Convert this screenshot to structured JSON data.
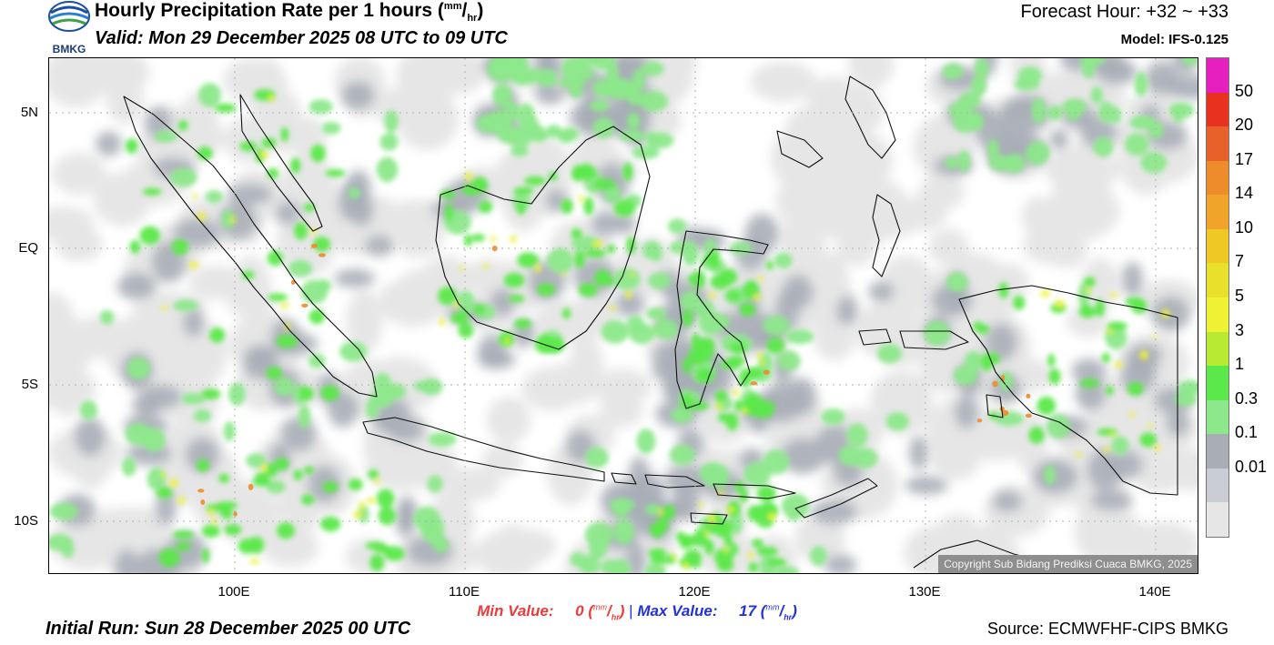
{
  "header": {
    "logo_text": "BMKG",
    "title": "Hourly Precipitation Rate per 1 hours",
    "unit_num": "mm",
    "unit_den": "hr",
    "valid": "Valid: Mon 29 December 2025 08 UTC to 09 UTC",
    "forecast_hour": "Forecast Hour: +32 ~ +33",
    "model": "Model: IFS-0.125"
  },
  "map": {
    "lat_labels": [
      "5N",
      "EQ",
      "5S",
      "10S"
    ],
    "lon_labels": [
      "100E",
      "110E",
      "120E",
      "130E",
      "140E"
    ],
    "copyright": "Copyright Sub Bidang Prediksi Cuaca BMKG, 2025"
  },
  "colorbar": {
    "labels": [
      "50",
      "20",
      "17",
      "14",
      "10",
      "7",
      "5",
      "3",
      "1",
      "0.3",
      "0.1",
      "0.01"
    ],
    "colors": [
      "#e61fbf",
      "#e8311f",
      "#e8602a",
      "#ee8b2a",
      "#f0a42a",
      "#f0c825",
      "#e8e02a",
      "#eef233",
      "#b8ea33",
      "#5be84a",
      "#8ce88a",
      "#a8adb6",
      "#c9cdd3",
      "#e6e6e6"
    ]
  },
  "footer": {
    "min_label": "Min Value:",
    "min_value": "0",
    "separator": "|",
    "max_label": "Max Value:",
    "max_value": "17",
    "unit_num": "mm",
    "unit_den": "hr",
    "initial_run": "Initial Run: Sun 28 December 2025 00 UTC",
    "source": "Source: ECMWFHF-CIPS BMKG"
  }
}
